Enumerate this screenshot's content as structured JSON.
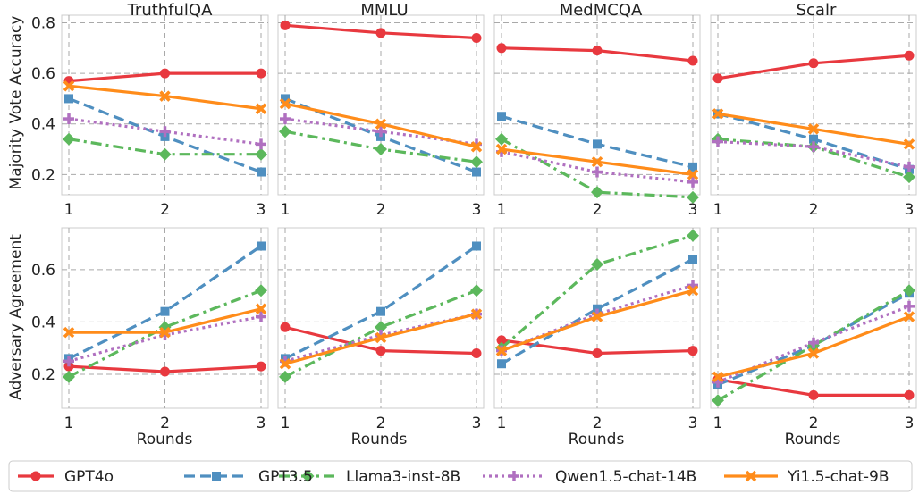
{
  "xlabel": "Rounds",
  "row_ylabels": [
    "Majority Vote Accuracy",
    "Adversary Agreement"
  ],
  "col_titles": [
    "TruthfulQA",
    "MMLU",
    "MedMCQA",
    "Scalr"
  ],
  "series_styles": [
    {
      "name": "GPT4o",
      "color": "#e8393f",
      "dash": "",
      "marker": "circle"
    },
    {
      "name": "GPT3.5",
      "color": "#4f8fc0",
      "dash": "12,6",
      "marker": "square"
    },
    {
      "name": "Llama3-inst-8B",
      "color": "#5cb85c",
      "dash": "12,5,3,5",
      "marker": "diamond"
    },
    {
      "name": "Qwen1.5-chat-14B",
      "color": "#b070c0",
      "dash": "3,4",
      "marker": "plus"
    },
    {
      "name": "Yi1.5-chat-9B",
      "color": "#ff8c1a",
      "dash": "",
      "marker": "x"
    }
  ],
  "chart_data": [
    {
      "type": "line",
      "title": "TruthfulQA",
      "ylabel": "Majority Vote Accuracy",
      "xlabel": "",
      "x": [
        1,
        2,
        3
      ],
      "ylim": [
        0.12,
        0.83
      ],
      "yticks": [
        0.2,
        0.4,
        0.6,
        0.8
      ],
      "series": [
        {
          "name": "GPT4o",
          "values": [
            0.57,
            0.6,
            0.6
          ]
        },
        {
          "name": "GPT3.5",
          "values": [
            0.5,
            0.35,
            0.21
          ]
        },
        {
          "name": "Llama3-inst-8B",
          "values": [
            0.34,
            0.28,
            0.28
          ]
        },
        {
          "name": "Qwen1.5-chat-14B",
          "values": [
            0.42,
            0.37,
            0.32
          ]
        },
        {
          "name": "Yi1.5-chat-9B",
          "values": [
            0.55,
            0.51,
            0.46
          ]
        }
      ]
    },
    {
      "type": "line",
      "title": "MMLU",
      "ylabel": "",
      "xlabel": "",
      "x": [
        1,
        2,
        3
      ],
      "ylim": [
        0.12,
        0.83
      ],
      "yticks": [
        0.2,
        0.4,
        0.6,
        0.8
      ],
      "series": [
        {
          "name": "GPT4o",
          "values": [
            0.79,
            0.76,
            0.74
          ]
        },
        {
          "name": "GPT3.5",
          "values": [
            0.5,
            0.35,
            0.21
          ]
        },
        {
          "name": "Llama3-inst-8B",
          "values": [
            0.37,
            0.3,
            0.25
          ]
        },
        {
          "name": "Qwen1.5-chat-14B",
          "values": [
            0.42,
            0.37,
            0.32
          ]
        },
        {
          "name": "Yi1.5-chat-9B",
          "values": [
            0.48,
            0.4,
            0.31
          ]
        }
      ]
    },
    {
      "type": "line",
      "title": "MedMCQA",
      "ylabel": "",
      "xlabel": "",
      "x": [
        1,
        2,
        3
      ],
      "ylim": [
        0.12,
        0.83
      ],
      "yticks": [
        0.2,
        0.4,
        0.6,
        0.8
      ],
      "series": [
        {
          "name": "GPT4o",
          "values": [
            0.7,
            0.69,
            0.65
          ]
        },
        {
          "name": "GPT3.5",
          "values": [
            0.43,
            0.32,
            0.23
          ]
        },
        {
          "name": "Llama3-inst-8B",
          "values": [
            0.34,
            0.13,
            0.11
          ]
        },
        {
          "name": "Qwen1.5-chat-14B",
          "values": [
            0.29,
            0.21,
            0.17
          ]
        },
        {
          "name": "Yi1.5-chat-9B",
          "values": [
            0.3,
            0.25,
            0.2
          ]
        }
      ]
    },
    {
      "type": "line",
      "title": "Scalr",
      "ylabel": "",
      "xlabel": "",
      "x": [
        1,
        2,
        3
      ],
      "ylim": [
        0.12,
        0.83
      ],
      "yticks": [
        0.2,
        0.4,
        0.6,
        0.8
      ],
      "series": [
        {
          "name": "GPT4o",
          "values": [
            0.58,
            0.64,
            0.67
          ]
        },
        {
          "name": "GPT3.5",
          "values": [
            0.44,
            0.34,
            0.22
          ]
        },
        {
          "name": "Llama3-inst-8B",
          "values": [
            0.34,
            0.31,
            0.19
          ]
        },
        {
          "name": "Qwen1.5-chat-14B",
          "values": [
            0.33,
            0.31,
            0.23
          ]
        },
        {
          "name": "Yi1.5-chat-9B",
          "values": [
            0.44,
            0.38,
            0.32
          ]
        }
      ]
    },
    {
      "type": "line",
      "title": "",
      "ylabel": "Adversary Agreement",
      "xlabel": "Rounds",
      "x": [
        1,
        2,
        3
      ],
      "ylim": [
        0.07,
        0.76
      ],
      "yticks": [
        0.2,
        0.4,
        0.6
      ],
      "series": [
        {
          "name": "GPT4o",
          "values": [
            0.23,
            0.21,
            0.23
          ]
        },
        {
          "name": "GPT3.5",
          "values": [
            0.26,
            0.44,
            0.69
          ]
        },
        {
          "name": "Llama3-inst-8B",
          "values": [
            0.19,
            0.38,
            0.52
          ]
        },
        {
          "name": "Qwen1.5-chat-14B",
          "values": [
            0.25,
            0.35,
            0.42
          ]
        },
        {
          "name": "Yi1.5-chat-9B",
          "values": [
            0.36,
            0.36,
            0.45
          ]
        }
      ]
    },
    {
      "type": "line",
      "title": "",
      "ylabel": "",
      "xlabel": "Rounds",
      "x": [
        1,
        2,
        3
      ],
      "ylim": [
        0.07,
        0.76
      ],
      "yticks": [
        0.2,
        0.4,
        0.6
      ],
      "series": [
        {
          "name": "GPT4o",
          "values": [
            0.38,
            0.29,
            0.28
          ]
        },
        {
          "name": "GPT3.5",
          "values": [
            0.26,
            0.44,
            0.69
          ]
        },
        {
          "name": "Llama3-inst-8B",
          "values": [
            0.19,
            0.38,
            0.52
          ]
        },
        {
          "name": "Qwen1.5-chat-14B",
          "values": [
            0.25,
            0.35,
            0.43
          ]
        },
        {
          "name": "Yi1.5-chat-9B",
          "values": [
            0.24,
            0.34,
            0.43
          ]
        }
      ]
    },
    {
      "type": "line",
      "title": "",
      "ylabel": "",
      "xlabel": "Rounds",
      "x": [
        1,
        2,
        3
      ],
      "ylim": [
        0.07,
        0.76
      ],
      "yticks": [
        0.2,
        0.4,
        0.6
      ],
      "series": [
        {
          "name": "GPT4o",
          "values": [
            0.33,
            0.28,
            0.29
          ]
        },
        {
          "name": "GPT3.5",
          "values": [
            0.24,
            0.45,
            0.64
          ]
        },
        {
          "name": "Llama3-inst-8B",
          "values": [
            0.3,
            0.62,
            0.73
          ]
        },
        {
          "name": "Qwen1.5-chat-14B",
          "values": [
            0.29,
            0.43,
            0.54
          ]
        },
        {
          "name": "Yi1.5-chat-9B",
          "values": [
            0.29,
            0.42,
            0.52
          ]
        }
      ]
    },
    {
      "type": "line",
      "title": "",
      "ylabel": "",
      "xlabel": "Rounds",
      "x": [
        1,
        2,
        3
      ],
      "ylim": [
        0.07,
        0.76
      ],
      "yticks": [
        0.2,
        0.4,
        0.6
      ],
      "series": [
        {
          "name": "GPT4o",
          "values": [
            0.18,
            0.12,
            0.12
          ]
        },
        {
          "name": "GPT3.5",
          "values": [
            0.16,
            0.31,
            0.51
          ]
        },
        {
          "name": "Llama3-inst-8B",
          "values": [
            0.1,
            0.31,
            0.52
          ]
        },
        {
          "name": "Qwen1.5-chat-14B",
          "values": [
            0.17,
            0.32,
            0.46
          ]
        },
        {
          "name": "Yi1.5-chat-9B",
          "values": [
            0.19,
            0.28,
            0.42
          ]
        }
      ]
    }
  ]
}
